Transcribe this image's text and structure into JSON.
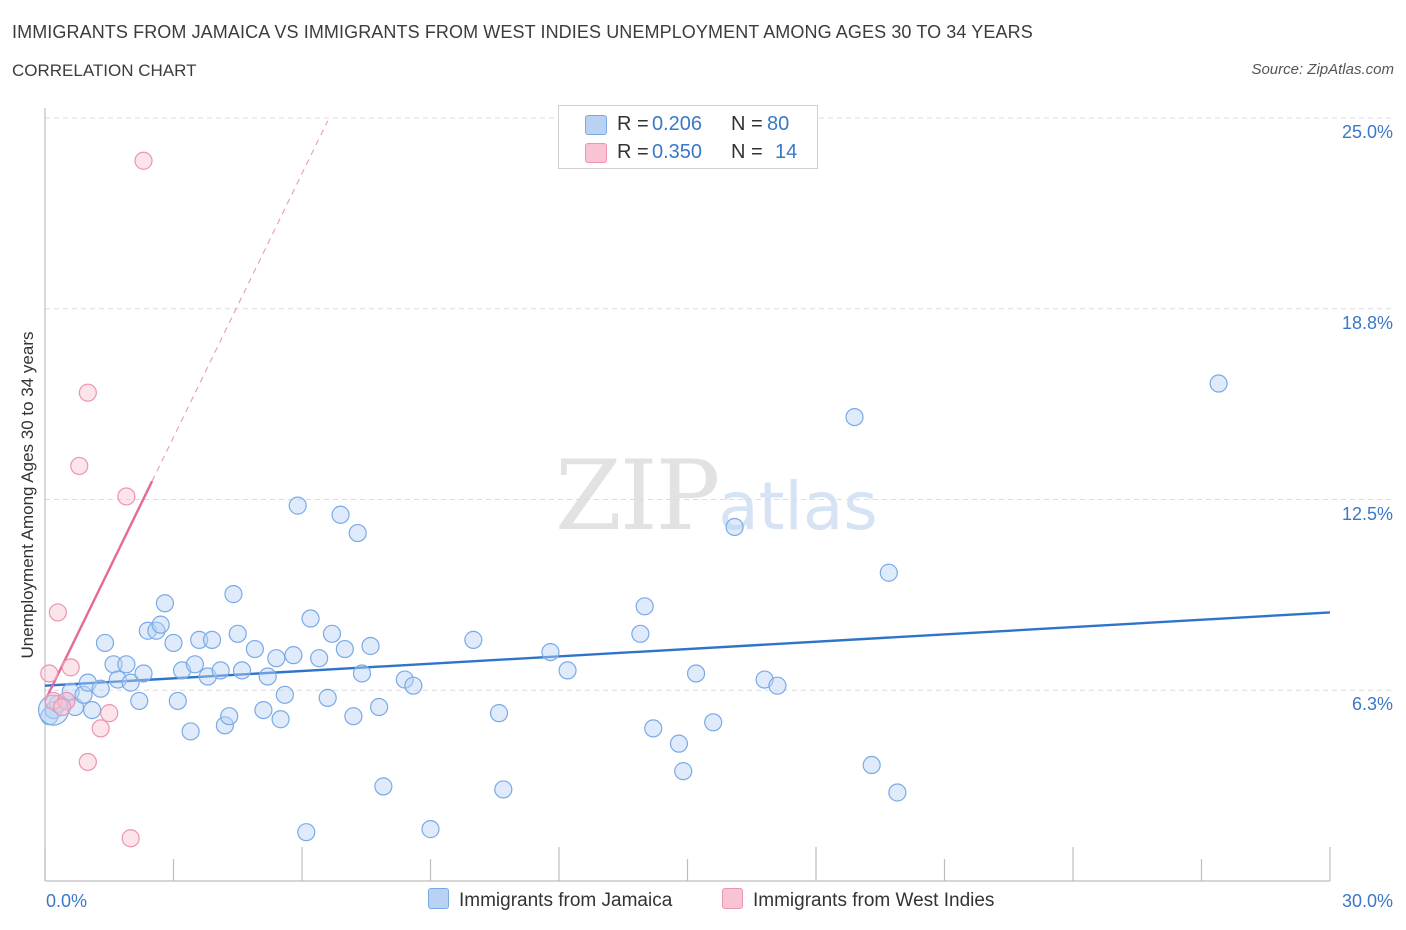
{
  "chart_data": {
    "type": "scatter",
    "title": "IMMIGRANTS FROM JAMAICA VS IMMIGRANTS FROM WEST INDIES UNEMPLOYMENT AMONG AGES 30 TO 34 YEARS",
    "subtitle": "CORRELATION CHART",
    "source": "Source: ZipAtlas.com",
    "ylabel": "Unemployment Among Ages 30 to 34 years",
    "xlabel": "",
    "xlim": [
      0,
      30
    ],
    "ylim": [
      0,
      25
    ],
    "y_ticks": [
      {
        "value": 6.25,
        "label": "6.3%"
      },
      {
        "value": 12.5,
        "label": "12.5%"
      },
      {
        "value": 18.75,
        "label": "18.8%"
      },
      {
        "value": 25.0,
        "label": "25.0%"
      }
    ],
    "x_tick_labels": {
      "min": "0.0%",
      "max": "30.0%"
    },
    "watermark": {
      "zip": "ZIP",
      "atlas": "atlas"
    },
    "legend": {
      "r_prefix": "R =",
      "n_prefix": "N =",
      "items": [
        {
          "name": "Immigrants from Jamaica",
          "r": "0.206",
          "n": "80",
          "color": "#7aaae6",
          "fill": "#b9d2f3"
        },
        {
          "name": "Immigrants from West Indies",
          "r": "0.350",
          "n": "14",
          "color": "#ee94b0",
          "fill": "#f8c3d3"
        }
      ]
    },
    "series": [
      {
        "name": "Immigrants from Jamaica",
        "color": "#7aaae6",
        "trend": {
          "x0": 0,
          "y0": 6.4,
          "x1": 30,
          "y1": 8.8,
          "color": "#2f74c8"
        },
        "points": [
          [
            0.1,
            5.4
          ],
          [
            0.2,
            5.6
          ],
          [
            0.3,
            5.8
          ],
          [
            0.5,
            5.9
          ],
          [
            0.6,
            6.2
          ],
          [
            0.7,
            5.7
          ],
          [
            0.9,
            6.1
          ],
          [
            1.0,
            6.5
          ],
          [
            1.1,
            5.6
          ],
          [
            1.3,
            6.3
          ],
          [
            1.4,
            7.8
          ],
          [
            1.6,
            7.1
          ],
          [
            1.7,
            6.6
          ],
          [
            1.9,
            7.1
          ],
          [
            2.0,
            6.5
          ],
          [
            2.2,
            5.9
          ],
          [
            2.3,
            6.8
          ],
          [
            2.4,
            8.2
          ],
          [
            2.6,
            8.2
          ],
          [
            2.7,
            8.4
          ],
          [
            2.8,
            9.1
          ],
          [
            3.0,
            7.8
          ],
          [
            3.1,
            5.9
          ],
          [
            3.2,
            6.9
          ],
          [
            3.4,
            4.9
          ],
          [
            3.5,
            7.1
          ],
          [
            3.6,
            7.9
          ],
          [
            3.8,
            6.7
          ],
          [
            3.9,
            7.9
          ],
          [
            4.1,
            6.9
          ],
          [
            4.2,
            5.1
          ],
          [
            4.3,
            5.4
          ],
          [
            4.4,
            9.4
          ],
          [
            4.5,
            8.1
          ],
          [
            4.6,
            6.9
          ],
          [
            4.9,
            7.6
          ],
          [
            5.1,
            5.6
          ],
          [
            5.2,
            6.7
          ],
          [
            5.4,
            7.3
          ],
          [
            5.5,
            5.3
          ],
          [
            5.6,
            6.1
          ],
          [
            5.8,
            7.4
          ],
          [
            5.9,
            12.3
          ],
          [
            6.1,
            1.6
          ],
          [
            6.2,
            8.6
          ],
          [
            6.4,
            7.3
          ],
          [
            6.6,
            6.0
          ],
          [
            6.7,
            8.1
          ],
          [
            6.9,
            12.0
          ],
          [
            7.0,
            7.6
          ],
          [
            7.2,
            5.4
          ],
          [
            7.3,
            11.4
          ],
          [
            7.4,
            6.8
          ],
          [
            7.6,
            7.7
          ],
          [
            7.8,
            5.7
          ],
          [
            7.9,
            3.1
          ],
          [
            8.4,
            6.6
          ],
          [
            8.6,
            6.4
          ],
          [
            9.0,
            1.7
          ],
          [
            10.0,
            7.9
          ],
          [
            10.6,
            5.5
          ],
          [
            10.7,
            3.0
          ],
          [
            11.8,
            7.5
          ],
          [
            12.2,
            6.9
          ],
          [
            13.9,
            8.1
          ],
          [
            14.0,
            9.0
          ],
          [
            14.2,
            5.0
          ],
          [
            14.8,
            4.5
          ],
          [
            14.9,
            3.6
          ],
          [
            15.2,
            6.8
          ],
          [
            15.6,
            5.2
          ],
          [
            16.1,
            11.6
          ],
          [
            16.8,
            6.6
          ],
          [
            17.1,
            6.4
          ],
          [
            18.9,
            15.2
          ],
          [
            19.3,
            3.8
          ],
          [
            19.7,
            10.1
          ],
          [
            19.9,
            2.9
          ],
          [
            27.4,
            16.3
          ],
          [
            0.2,
            5.6
          ]
        ]
      },
      {
        "name": "Immigrants from West Indies",
        "color": "#ee94b0",
        "trend": {
          "x0": 0,
          "y0": 5.9,
          "x1": 2.5,
          "y1": 13.1,
          "x_dash_end": 6.6,
          "color": "#e36b96"
        },
        "points": [
          [
            0.1,
            6.8
          ],
          [
            0.2,
            5.9
          ],
          [
            0.3,
            8.8
          ],
          [
            0.5,
            5.9
          ],
          [
            0.6,
            7.0
          ],
          [
            0.8,
            13.6
          ],
          [
            1.0,
            16.0
          ],
          [
            1.0,
            3.9
          ],
          [
            1.3,
            5.0
          ],
          [
            1.5,
            5.5
          ],
          [
            1.9,
            12.6
          ],
          [
            2.0,
            1.4
          ],
          [
            2.3,
            23.6
          ],
          [
            0.4,
            5.7
          ]
        ]
      }
    ]
  }
}
